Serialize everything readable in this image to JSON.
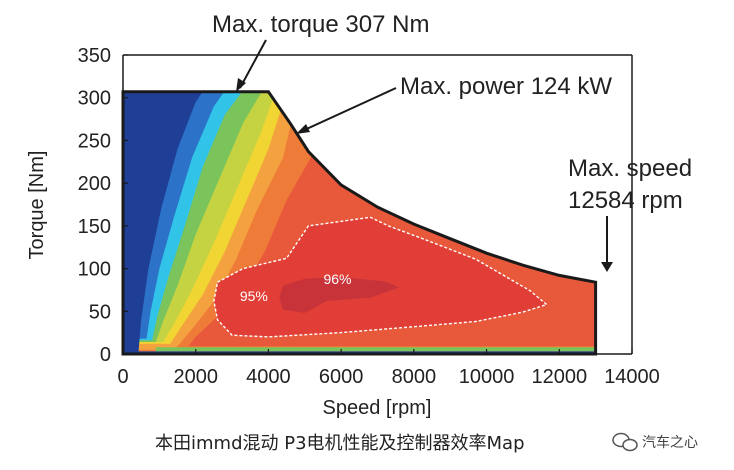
{
  "chart_data": {
    "type": "heatmap",
    "title": "",
    "xlabel": "Speed [rpm]",
    "ylabel": "Torque [Nm]",
    "xlim": [
      0,
      14000
    ],
    "ylim": [
      0,
      350
    ],
    "x_ticks": [
      0,
      2000,
      4000,
      6000,
      8000,
      10000,
      12000,
      14000
    ],
    "x_tick_labels": [
      "0",
      "2000",
      "4000",
      "6000",
      "8000",
      "10000",
      "12000",
      "14000"
    ],
    "y_ticks": [
      0,
      50,
      100,
      150,
      200,
      250,
      300,
      350
    ],
    "y_tick_labels": [
      "0",
      "50",
      "100",
      "150",
      "200",
      "250",
      "300",
      "350"
    ],
    "envelope": [
      [
        0,
        307
      ],
      [
        4000,
        307
      ],
      [
        4600,
        270
      ],
      [
        5100,
        237
      ],
      [
        6000,
        198
      ],
      [
        7000,
        172
      ],
      [
        8000,
        152
      ],
      [
        9000,
        135
      ],
      [
        10000,
        118
      ],
      [
        11000,
        104
      ],
      [
        12000,
        92
      ],
      [
        13000,
        84
      ],
      [
        13000,
        0
      ],
      [
        0,
        0
      ]
    ],
    "efficiency_contours": [
      {
        "label": "95%",
        "value": 95,
        "points": [
          [
            2600,
            84
          ],
          [
            3300,
            100
          ],
          [
            4500,
            112
          ],
          [
            5100,
            150
          ],
          [
            6800,
            160
          ],
          [
            7300,
            150
          ],
          [
            8300,
            134
          ],
          [
            9700,
            111
          ],
          [
            11200,
            74
          ],
          [
            11650,
            58
          ],
          [
            11000,
            49
          ],
          [
            9700,
            38
          ],
          [
            8000,
            32
          ],
          [
            6000,
            25
          ],
          [
            4000,
            20
          ],
          [
            3000,
            22
          ],
          [
            2600,
            40
          ],
          [
            2500,
            62
          ]
        ]
      },
      {
        "label": "96%",
        "value": 96,
        "points": [
          [
            4400,
            80
          ],
          [
            5000,
            88
          ],
          [
            6000,
            90
          ],
          [
            7200,
            85
          ],
          [
            7600,
            78
          ],
          [
            6800,
            66
          ],
          [
            5600,
            62
          ],
          [
            5000,
            48
          ],
          [
            4400,
            52
          ],
          [
            4300,
            66
          ]
        ]
      }
    ],
    "annotations": [
      {
        "text": "Max. torque 307 Nm",
        "points_to": [
          3100,
          307
        ]
      },
      {
        "text": "Max. power 124 kW",
        "points_to": [
          4700,
          262
        ]
      },
      {
        "text": "Max. speed",
        "points_to": [
          13000,
          93
        ]
      },
      {
        "text": "12584 rpm",
        "points_to": [
          13000,
          93
        ]
      }
    ],
    "colors": {
      "dark_blue": "#1f3f96",
      "blue": "#2c72c8",
      "cyan": "#31c3e8",
      "green": "#7ac45b",
      "yellow_green": "#c5d342",
      "yellow": "#f1d533",
      "orange_light": "#f4a23f",
      "orange": "#ef7b39",
      "red_orange": "#e8583a",
      "red": "#e03e36",
      "dark_red": "#c8333a"
    }
  },
  "caption": "本田immd混动 P3电机性能及控制器效率Map",
  "watermark": "汽车之心"
}
